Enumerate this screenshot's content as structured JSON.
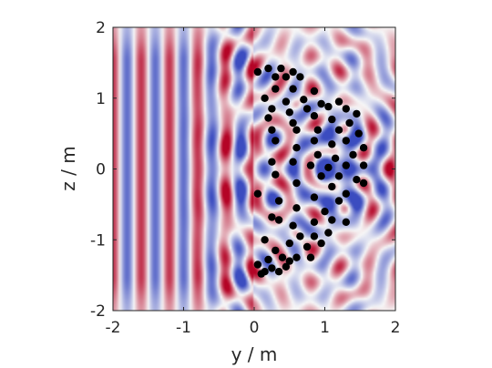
{
  "chart_data": {
    "type": "heatmap",
    "title": "",
    "xlabel": "y / m",
    "ylabel": "z / m",
    "xlim": [
      -2,
      2
    ],
    "ylim": [
      -2,
      2
    ],
    "x_ticks": [
      "-2",
      "-1",
      "0",
      "1",
      "2"
    ],
    "y_ticks": [
      "-2",
      "-1",
      "0",
      "1",
      "2"
    ],
    "colormap": [
      "#3b4cc0",
      "#f7f7f7",
      "#b40426"
    ],
    "grid": false,
    "legend": "none",
    "field": {
      "wavelength_m": 0.4,
      "description_visible": "plane-wave field from the left scattered by a cluster of particles"
    },
    "series": [
      {
        "type": "scatter",
        "color": "#000000",
        "points": [
          [
            0.05,
            1.37
          ],
          [
            0.2,
            1.42
          ],
          [
            0.38,
            1.42
          ],
          [
            0.55,
            1.37
          ],
          [
            0.3,
            1.3
          ],
          [
            0.45,
            1.3
          ],
          [
            0.65,
            1.3
          ],
          [
            0.3,
            1.13
          ],
          [
            0.55,
            1.13
          ],
          [
            0.85,
            1.1
          ],
          [
            0.15,
            1.0
          ],
          [
            0.45,
            0.95
          ],
          [
            0.7,
            0.98
          ],
          [
            0.95,
            0.92
          ],
          [
            0.25,
            0.85
          ],
          [
            0.5,
            0.8
          ],
          [
            0.75,
            0.85
          ],
          [
            1.05,
            0.88
          ],
          [
            1.2,
            0.95
          ],
          [
            1.3,
            0.85
          ],
          [
            1.45,
            0.78
          ],
          [
            0.2,
            0.72
          ],
          [
            0.55,
            0.65
          ],
          [
            0.85,
            0.75
          ],
          [
            1.1,
            0.7
          ],
          [
            1.35,
            0.65
          ],
          [
            0.25,
            0.55
          ],
          [
            0.6,
            0.55
          ],
          [
            0.9,
            0.55
          ],
          [
            1.2,
            0.55
          ],
          [
            1.48,
            0.5
          ],
          [
            0.3,
            0.4
          ],
          [
            0.85,
            0.4
          ],
          [
            1.1,
            0.35
          ],
          [
            1.3,
            0.4
          ],
          [
            1.55,
            0.3
          ],
          [
            0.6,
            0.3
          ],
          [
            0.9,
            0.2
          ],
          [
            1.15,
            0.15
          ],
          [
            1.4,
            0.2
          ],
          [
            0.25,
            0.1
          ],
          [
            0.55,
            0.1
          ],
          [
            0.8,
            0.05
          ],
          [
            1.05,
            0.02
          ],
          [
            1.3,
            0.05
          ],
          [
            1.55,
            0.05
          ],
          [
            0.3,
            -0.08
          ],
          [
            0.95,
            -0.1
          ],
          [
            1.2,
            -0.1
          ],
          [
            1.45,
            -0.15
          ],
          [
            0.05,
            -0.35
          ],
          [
            0.6,
            -0.2
          ],
          [
            1.1,
            -0.25
          ],
          [
            1.3,
            -0.35
          ],
          [
            1.55,
            -0.2
          ],
          [
            0.35,
            -0.45
          ],
          [
            0.85,
            -0.4
          ],
          [
            1.2,
            -0.45
          ],
          [
            0.6,
            -0.55
          ],
          [
            1.0,
            -0.6
          ],
          [
            0.25,
            -0.68
          ],
          [
            0.35,
            -0.72
          ],
          [
            0.55,
            -0.8
          ],
          [
            0.85,
            -0.75
          ],
          [
            1.1,
            -0.72
          ],
          [
            1.3,
            -0.75
          ],
          [
            0.65,
            -0.95
          ],
          [
            0.85,
            -0.95
          ],
          [
            1.05,
            -0.9
          ],
          [
            0.15,
            -1.0
          ],
          [
            0.5,
            -1.05
          ],
          [
            0.75,
            -1.1
          ],
          [
            0.95,
            -1.05
          ],
          [
            0.4,
            -1.25
          ],
          [
            0.6,
            -1.25
          ],
          [
            0.8,
            -1.25
          ],
          [
            0.2,
            -1.28
          ],
          [
            0.45,
            -1.38
          ],
          [
            0.05,
            -1.35
          ],
          [
            0.25,
            -1.4
          ],
          [
            0.15,
            -1.45
          ],
          [
            0.1,
            -1.48
          ],
          [
            0.35,
            -1.45
          ],
          [
            0.5,
            -1.3
          ],
          [
            0.3,
            -1.15
          ]
        ]
      }
    ]
  }
}
